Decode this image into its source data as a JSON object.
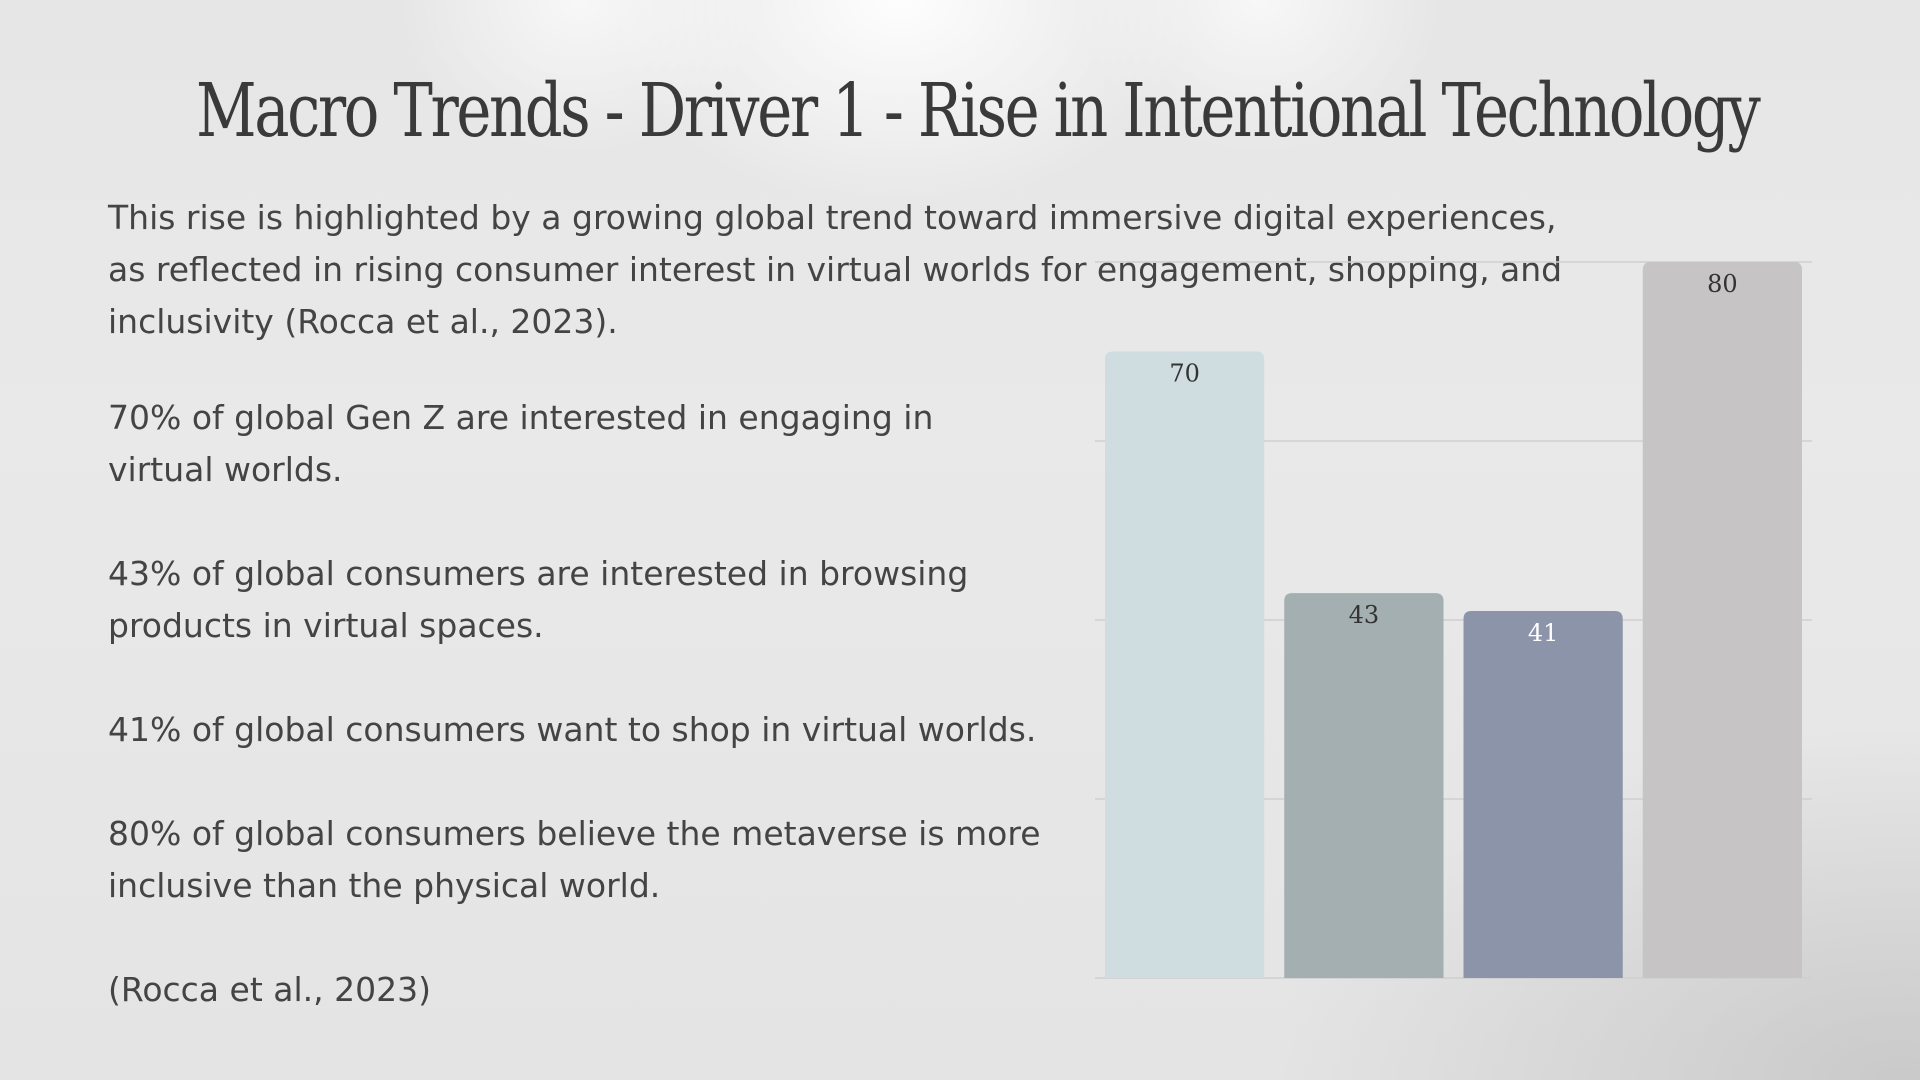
{
  "slide": {
    "title": "Macro Trends - Driver 1 - Rise in Intentional Technology",
    "intro": "This rise is highlighted by a growing global trend toward immersive digital experiences, as reflected in rising consumer interest in virtual worlds for engagement, shopping, and inclusivity (Rocca et al., 2023).",
    "stats": [
      "70% of global Gen Z are interested in engaging in virtual worlds.",
      "43% of global consumers are interested in browsing products in virtual spaces.",
      "41% of global consumers want to shop in virtual worlds.",
      "80% of global consumers believe the metaverse is more inclusive than the physical world."
    ],
    "citation": "(Rocca et al., 2023)"
  },
  "chart_data": {
    "type": "bar",
    "values": [
      70,
      43,
      41,
      80
    ],
    "data_labels": [
      "70",
      "43",
      "41",
      "80"
    ],
    "bar_colors": [
      "#cfdce0",
      "#a3afb0",
      "#8b94a9",
      "#c6c4c4"
    ],
    "label_colors": [
      "#333333",
      "#333333",
      "#ffffff",
      "#333333"
    ],
    "ylim": [
      0,
      80
    ],
    "gridlines": [
      20,
      40,
      60,
      80
    ],
    "grid": true,
    "legend": "none"
  }
}
